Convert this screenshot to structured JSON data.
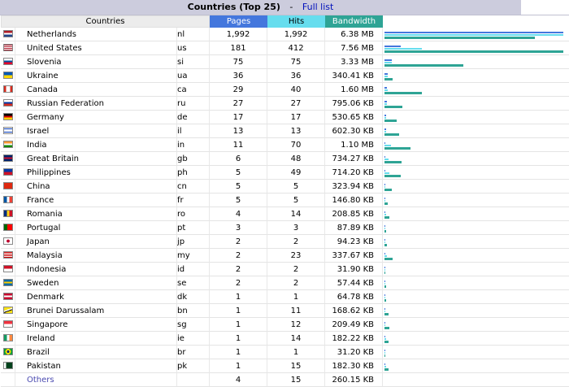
{
  "header": {
    "title": "Countries (Top 25)",
    "separator": "-",
    "full_list_link": "Full list"
  },
  "columns": {
    "countries": "Countries",
    "pages": "Pages",
    "hits": "Hits",
    "bandwidth": "Bandwidth"
  },
  "colors": {
    "pages": "#4477dd",
    "hits": "#66ddee",
    "bandwidth": "#2ea495"
  },
  "rows": [
    {
      "flag": "netherlands-flag-icon",
      "country": "Netherlands",
      "code": "nl",
      "pages": "1,992",
      "hits": "1,992",
      "bandwidth": "6.38 MB",
      "pages_frac": 1.0,
      "hits_frac": 1.0,
      "bw_frac": 0.84
    },
    {
      "flag": "united-states-flag-icon",
      "country": "United States",
      "code": "us",
      "pages": "181",
      "hits": "412",
      "bandwidth": "7.56 MB",
      "pages_frac": 0.09,
      "hits_frac": 0.21,
      "bw_frac": 1.0
    },
    {
      "flag": "slovenia-flag-icon",
      "country": "Slovenia",
      "code": "si",
      "pages": "75",
      "hits": "75",
      "bandwidth": "3.33 MB",
      "pages_frac": 0.04,
      "hits_frac": 0.04,
      "bw_frac": 0.44
    },
    {
      "flag": "ukraine-flag-icon",
      "country": "Ukraine",
      "code": "ua",
      "pages": "36",
      "hits": "36",
      "bandwidth": "340.41 KB",
      "pages_frac": 0.02,
      "hits_frac": 0.02,
      "bw_frac": 0.044
    },
    {
      "flag": "canada-flag-icon",
      "country": "Canada",
      "code": "ca",
      "pages": "29",
      "hits": "40",
      "bandwidth": "1.60 MB",
      "pages_frac": 0.015,
      "hits_frac": 0.02,
      "bw_frac": 0.21
    },
    {
      "flag": "russia-flag-icon",
      "country": "Russian Federation",
      "code": "ru",
      "pages": "27",
      "hits": "27",
      "bandwidth": "795.06 KB",
      "pages_frac": 0.014,
      "hits_frac": 0.014,
      "bw_frac": 0.1
    },
    {
      "flag": "germany-flag-icon",
      "country": "Germany",
      "code": "de",
      "pages": "17",
      "hits": "17",
      "bandwidth": "530.65 KB",
      "pages_frac": 0.009,
      "hits_frac": 0.009,
      "bw_frac": 0.07
    },
    {
      "flag": "israel-flag-icon",
      "country": "Israel",
      "code": "il",
      "pages": "13",
      "hits": "13",
      "bandwidth": "602.30 KB",
      "pages_frac": 0.007,
      "hits_frac": 0.007,
      "bw_frac": 0.08
    },
    {
      "flag": "india-flag-icon",
      "country": "India",
      "code": "in",
      "pages": "11",
      "hits": "70",
      "bandwidth": "1.10 MB",
      "pages_frac": 0.006,
      "hits_frac": 0.035,
      "bw_frac": 0.145
    },
    {
      "flag": "great-britain-flag-icon",
      "country": "Great Britain",
      "code": "gb",
      "pages": "6",
      "hits": "48",
      "bandwidth": "734.27 KB",
      "pages_frac": 0.003,
      "hits_frac": 0.024,
      "bw_frac": 0.095
    },
    {
      "flag": "philippines-flag-icon",
      "country": "Philippines",
      "code": "ph",
      "pages": "5",
      "hits": "49",
      "bandwidth": "714.20 KB",
      "pages_frac": 0.003,
      "hits_frac": 0.025,
      "bw_frac": 0.092
    },
    {
      "flag": "china-flag-icon",
      "country": "China",
      "code": "cn",
      "pages": "5",
      "hits": "5",
      "bandwidth": "323.94 KB",
      "pages_frac": 0.003,
      "hits_frac": 0.003,
      "bw_frac": 0.042
    },
    {
      "flag": "france-flag-icon",
      "country": "France",
      "code": "fr",
      "pages": "5",
      "hits": "5",
      "bandwidth": "146.80 KB",
      "pages_frac": 0.003,
      "hits_frac": 0.003,
      "bw_frac": 0.019
    },
    {
      "flag": "romania-flag-icon",
      "country": "Romania",
      "code": "ro",
      "pages": "4",
      "hits": "14",
      "bandwidth": "208.85 KB",
      "pages_frac": 0.002,
      "hits_frac": 0.007,
      "bw_frac": 0.027
    },
    {
      "flag": "portugal-flag-icon",
      "country": "Portugal",
      "code": "pt",
      "pages": "3",
      "hits": "3",
      "bandwidth": "87.89 KB",
      "pages_frac": 0.002,
      "hits_frac": 0.002,
      "bw_frac": 0.011
    },
    {
      "flag": "japan-flag-icon",
      "country": "Japan",
      "code": "jp",
      "pages": "2",
      "hits": "2",
      "bandwidth": "94.23 KB",
      "pages_frac": 0.001,
      "hits_frac": 0.001,
      "bw_frac": 0.012
    },
    {
      "flag": "malaysia-flag-icon",
      "country": "Malaysia",
      "code": "my",
      "pages": "2",
      "hits": "23",
      "bandwidth": "337.67 KB",
      "pages_frac": 0.001,
      "hits_frac": 0.012,
      "bw_frac": 0.044
    },
    {
      "flag": "indonesia-flag-icon",
      "country": "Indonesia",
      "code": "id",
      "pages": "2",
      "hits": "2",
      "bandwidth": "31.90 KB",
      "pages_frac": 0.001,
      "hits_frac": 0.001,
      "bw_frac": 0.004
    },
    {
      "flag": "sweden-flag-icon",
      "country": "Sweden",
      "code": "se",
      "pages": "2",
      "hits": "2",
      "bandwidth": "57.44 KB",
      "pages_frac": 0.001,
      "hits_frac": 0.001,
      "bw_frac": 0.007
    },
    {
      "flag": "denmark-flag-icon",
      "country": "Denmark",
      "code": "dk",
      "pages": "1",
      "hits": "1",
      "bandwidth": "64.78 KB",
      "pages_frac": 0.0005,
      "hits_frac": 0.0005,
      "bw_frac": 0.008
    },
    {
      "flag": "brunei-flag-icon",
      "country": "Brunei Darussalam",
      "code": "bn",
      "pages": "1",
      "hits": "11",
      "bandwidth": "168.62 KB",
      "pages_frac": 0.0005,
      "hits_frac": 0.006,
      "bw_frac": 0.022
    },
    {
      "flag": "singapore-flag-icon",
      "country": "Singapore",
      "code": "sg",
      "pages": "1",
      "hits": "12",
      "bandwidth": "209.49 KB",
      "pages_frac": 0.0005,
      "hits_frac": 0.006,
      "bw_frac": 0.027
    },
    {
      "flag": "ireland-flag-icon",
      "country": "Ireland",
      "code": "ie",
      "pages": "1",
      "hits": "14",
      "bandwidth": "182.22 KB",
      "pages_frac": 0.0005,
      "hits_frac": 0.007,
      "bw_frac": 0.024
    },
    {
      "flag": "brazil-flag-icon",
      "country": "Brazil",
      "code": "br",
      "pages": "1",
      "hits": "1",
      "bandwidth": "31.20 KB",
      "pages_frac": 0.0005,
      "hits_frac": 0.0005,
      "bw_frac": 0.004
    },
    {
      "flag": "pakistan-flag-icon",
      "country": "Pakistan",
      "code": "pk",
      "pages": "1",
      "hits": "15",
      "bandwidth": "182.30 KB",
      "pages_frac": 0.0005,
      "hits_frac": 0.008,
      "bw_frac": 0.024
    }
  ],
  "others": {
    "label": "Others",
    "pages": "4",
    "hits": "15",
    "bandwidth": "260.15 KB"
  }
}
